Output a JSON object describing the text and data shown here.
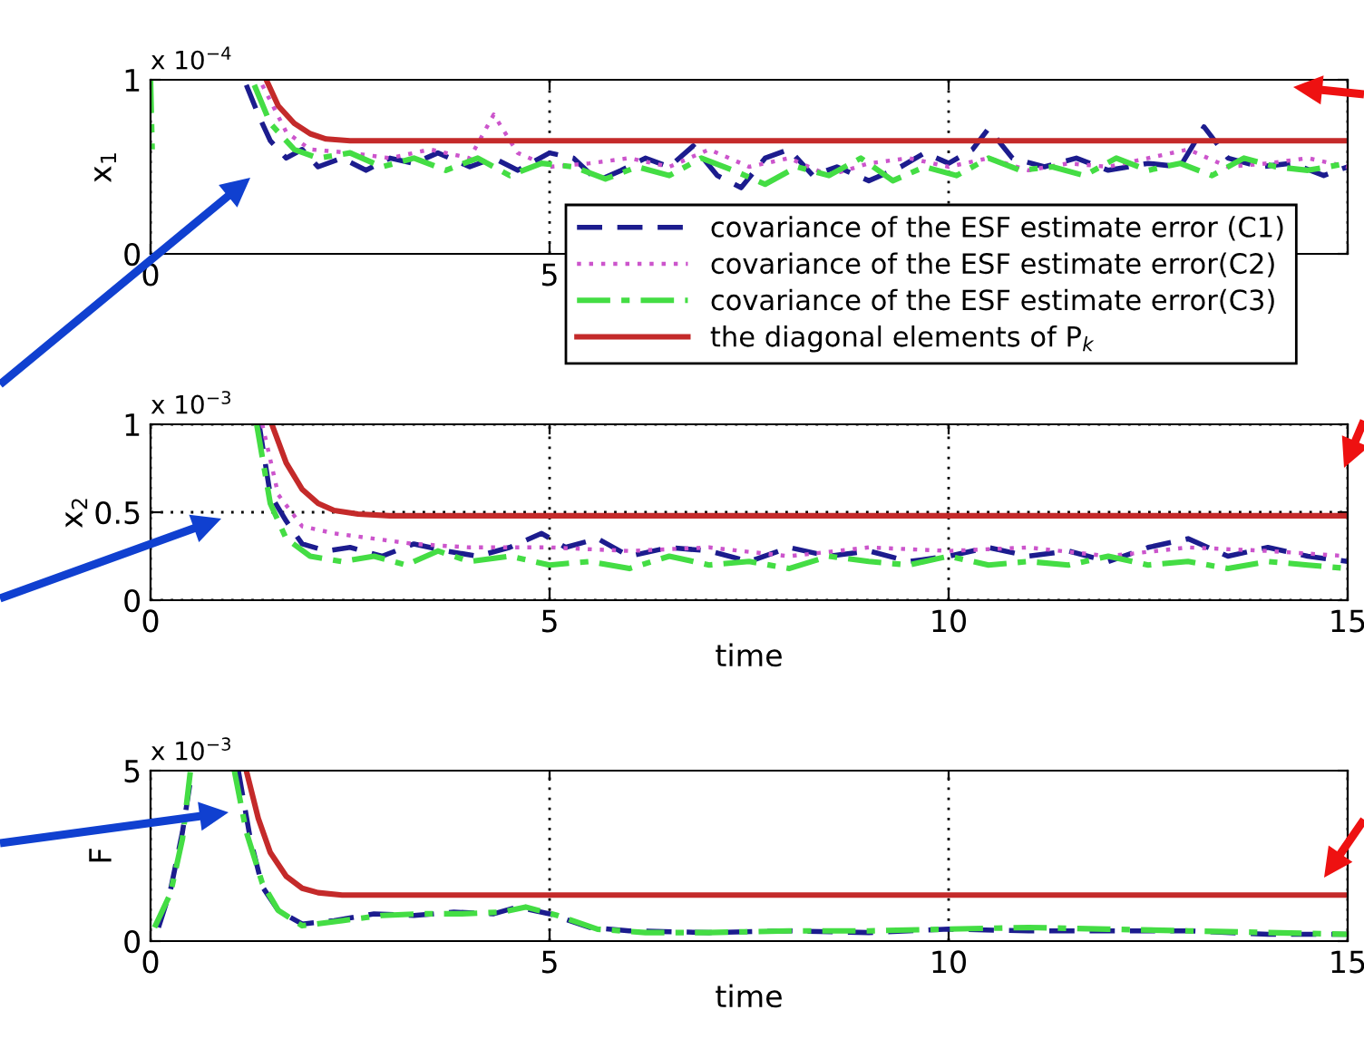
{
  "chart_data": [
    {
      "type": "line",
      "ylabel": "x$_{1}$",
      "annotations": [
        "x 10$^{−4}$"
      ],
      "xlim": [
        0,
        15
      ],
      "ylim": [
        0,
        1
      ],
      "xticks": [
        0,
        5,
        {
          "value": 10,
          "label": null
        },
        {
          "value": 15,
          "label": null
        }
      ],
      "yticks": [
        0,
        1
      ],
      "grid": "x",
      "legend": "bottom right",
      "series": [
        {
          "name": "covariance of the ESF estimate error (C1)",
          "color": "#1c1c8e",
          "line_style": "dashed",
          "x": [
            1.2,
            1.35,
            1.5,
            1.7,
            1.9,
            2.1,
            2.4,
            2.7,
            3.0,
            3.3,
            3.6,
            4.0,
            4.3,
            4.6,
            5.0,
            5.3,
            5.6,
            5.9,
            6.2,
            6.5,
            6.8,
            7.1,
            7.4,
            7.7,
            8.0,
            8.3,
            8.6,
            9.0,
            9.4,
            9.7,
            10.0,
            10.3,
            10.5,
            10.8,
            11.2,
            11.6,
            12.0,
            12.5,
            12.9,
            13.2,
            13.5,
            13.9,
            14.3,
            14.7,
            15
          ],
          "values": [
            0.97,
            0.8,
            0.65,
            0.55,
            0.6,
            0.5,
            0.55,
            0.48,
            0.55,
            0.52,
            0.58,
            0.5,
            0.55,
            0.48,
            0.58,
            0.55,
            0.42,
            0.48,
            0.55,
            0.5,
            0.62,
            0.45,
            0.38,
            0.55,
            0.6,
            0.45,
            0.5,
            0.42,
            0.5,
            0.58,
            0.52,
            0.6,
            0.72,
            0.55,
            0.5,
            0.55,
            0.48,
            0.52,
            0.5,
            0.73,
            0.55,
            0.5,
            0.52,
            0.45,
            0.5
          ]
        },
        {
          "name": "covariance of the ESF estimate error(C2)",
          "color": "#cc55cc",
          "line_style": "dotted",
          "x": [
            1.4,
            1.7,
            2.0,
            2.5,
            3.0,
            3.5,
            4.0,
            4.3,
            4.6,
            5.0,
            5.5,
            6.0,
            6.5,
            7.0,
            7.5,
            8.0,
            8.5,
            9.0,
            9.5,
            10.0,
            10.5,
            11.0,
            11.5,
            12.0,
            12.5,
            13.0,
            13.5,
            14.0,
            14.5,
            15
          ],
          "values": [
            0.97,
            0.7,
            0.6,
            0.58,
            0.55,
            0.6,
            0.55,
            0.8,
            0.58,
            0.5,
            0.52,
            0.55,
            0.5,
            0.6,
            0.5,
            0.55,
            0.45,
            0.52,
            0.55,
            0.5,
            0.55,
            0.48,
            0.52,
            0.5,
            0.55,
            0.6,
            0.5,
            0.52,
            0.55,
            0.5
          ]
        },
        {
          "name": "covariance of the ESF estimate error(C3)",
          "color": "#44dd44",
          "line_style": "dashdot",
          "x": [
            0,
            0.02,
            0.5,
            1.3,
            1.5,
            1.8,
            2.1,
            2.5,
            2.9,
            3.3,
            3.7,
            4.1,
            4.5,
            4.9,
            5.3,
            5.7,
            6.1,
            6.5,
            6.9,
            7.3,
            7.7,
            8.1,
            8.5,
            8.9,
            9.3,
            9.7,
            10.1,
            10.5,
            10.9,
            11.3,
            11.7,
            12.1,
            12.5,
            12.9,
            13.3,
            13.7,
            14.1,
            14.5,
            15
          ],
          "values": [
            1.0,
            0.6,
            null,
            0.97,
            0.75,
            0.6,
            0.55,
            0.58,
            0.5,
            0.55,
            0.48,
            0.55,
            0.45,
            0.52,
            0.5,
            0.43,
            0.5,
            0.45,
            0.55,
            0.48,
            0.4,
            0.5,
            0.45,
            0.55,
            0.42,
            0.5,
            0.45,
            0.55,
            0.48,
            0.5,
            0.45,
            0.55,
            0.48,
            0.52,
            0.45,
            0.55,
            0.5,
            0.48,
            0.52
          ]
        },
        {
          "name": "the diagonal elements of P$_{k}$",
          "color": "#c42a2a",
          "line_style": "solid",
          "x": [
            1.45,
            1.6,
            1.8,
            2.0,
            2.2,
            2.5,
            3,
            15
          ],
          "values": [
            1.0,
            0.85,
            0.75,
            0.69,
            0.66,
            0.65,
            0.65,
            0.65
          ]
        }
      ]
    },
    {
      "type": "line",
      "ylabel": "x$_{2}$",
      "xlabel": "time",
      "annotations": [
        "x 10$^{−3}$"
      ],
      "xlim": [
        0,
        15
      ],
      "ylim": [
        0,
        1
      ],
      "xticks": [
        0,
        5,
        10,
        15
      ],
      "yticks": [
        0,
        0.5,
        1
      ],
      "grid": true,
      "series": [
        {
          "color": "#1c1c8e",
          "line_style": "dashed",
          "x": [
            1.36,
            1.5,
            1.7,
            1.9,
            2.2,
            2.5,
            2.9,
            3.3,
            3.7,
            4.1,
            4.5,
            4.9,
            5.2,
            5.6,
            6,
            6.5,
            7,
            7.5,
            8,
            8.5,
            9,
            9.5,
            10,
            10.5,
            11,
            11.5,
            12,
            12.5,
            13,
            13.5,
            14,
            14.5,
            15
          ],
          "values": [
            1.0,
            0.6,
            0.45,
            0.32,
            0.28,
            0.3,
            0.25,
            0.32,
            0.28,
            0.25,
            0.3,
            0.38,
            0.3,
            0.35,
            0.25,
            0.3,
            0.28,
            0.22,
            0.3,
            0.25,
            0.28,
            0.22,
            0.25,
            0.3,
            0.25,
            0.28,
            0.22,
            0.3,
            0.35,
            0.25,
            0.3,
            0.25,
            0.22
          ]
        },
        {
          "color": "#cc55cc",
          "line_style": "dotted",
          "x": [
            1.4,
            1.6,
            1.9,
            2.3,
            2.8,
            3.3,
            4,
            5,
            6,
            7,
            8,
            9,
            10,
            11,
            12,
            13,
            14,
            15
          ],
          "values": [
            1.0,
            0.6,
            0.42,
            0.38,
            0.35,
            0.32,
            0.3,
            0.3,
            0.28,
            0.3,
            0.25,
            0.3,
            0.28,
            0.3,
            0.25,
            0.3,
            0.28,
            0.25
          ]
        },
        {
          "color": "#44dd44",
          "line_style": "dashdot",
          "x": [
            1.33,
            1.5,
            1.7,
            2,
            2.4,
            2.8,
            3.2,
            3.6,
            4,
            4.5,
            5,
            5.5,
            6,
            6.5,
            7,
            7.5,
            8,
            8.5,
            9,
            9.5,
            10,
            10.5,
            11,
            11.5,
            12,
            12.5,
            13,
            13.5,
            14,
            14.5,
            15
          ],
          "values": [
            1.0,
            0.55,
            0.35,
            0.25,
            0.22,
            0.25,
            0.2,
            0.28,
            0.22,
            0.25,
            0.2,
            0.22,
            0.18,
            0.25,
            0.2,
            0.22,
            0.18,
            0.25,
            0.22,
            0.2,
            0.25,
            0.2,
            0.22,
            0.2,
            0.25,
            0.2,
            0.22,
            0.18,
            0.22,
            0.2,
            0.18
          ]
        },
        {
          "color": "#c42a2a",
          "line_style": "solid",
          "x": [
            1.52,
            1.7,
            1.9,
            2.1,
            2.3,
            2.6,
            3,
            15
          ],
          "values": [
            1.0,
            0.78,
            0.63,
            0.55,
            0.51,
            0.49,
            0.48,
            0.48
          ]
        }
      ]
    },
    {
      "type": "line",
      "ylabel": "F",
      "xlabel": "time",
      "annotations": [
        "x 10$^{−3}$"
      ],
      "xlim": [
        0,
        15
      ],
      "ylim": [
        0,
        5
      ],
      "xticks": [
        0,
        5,
        10,
        15
      ],
      "yticks": [
        0,
        5
      ],
      "grid": "x",
      "series": [
        {
          "color": "#1c1c8e",
          "line_style": "dashed",
          "x": [
            0.1,
            0.25,
            0.4,
            0.52,
            0.8,
            1.1,
            1.25,
            1.4,
            1.6,
            1.9,
            2.3,
            2.8,
            3.3,
            3.8,
            4.3,
            4.6,
            5.0,
            5.5,
            6,
            7,
            8,
            9,
            10,
            11,
            12,
            13,
            14,
            15
          ],
          "values": [
            0.4,
            1.5,
            3.2,
            5.0,
            null,
            5.0,
            3.0,
            1.6,
            0.9,
            0.5,
            0.6,
            0.8,
            0.75,
            0.85,
            0.8,
            1.0,
            0.8,
            0.4,
            0.3,
            0.25,
            0.3,
            0.25,
            0.35,
            0.3,
            0.3,
            0.3,
            0.2,
            0.2
          ]
        },
        {
          "color": "#44dd44",
          "line_style": "dashdot",
          "x": [
            0.05,
            0.25,
            0.4,
            0.5,
            0.8,
            1.05,
            1.2,
            1.4,
            1.6,
            1.9,
            2.4,
            2.9,
            3.4,
            3.9,
            4.4,
            4.7,
            5.1,
            5.6,
            6.2,
            7,
            8,
            9,
            10,
            11,
            12,
            13,
            14,
            15
          ],
          "values": [
            0.4,
            1.4,
            3.0,
            5.0,
            null,
            5.0,
            3.2,
            1.7,
            0.9,
            0.45,
            0.6,
            0.75,
            0.8,
            0.8,
            0.85,
            1.0,
            0.75,
            0.35,
            0.25,
            0.25,
            0.3,
            0.3,
            0.35,
            0.4,
            0.35,
            0.3,
            0.25,
            0.2
          ]
        },
        {
          "color": "#c42a2a",
          "line_style": "solid",
          "x": [
            1.2,
            1.35,
            1.5,
            1.7,
            1.9,
            2.1,
            2.4,
            15
          ],
          "values": [
            5.0,
            3.6,
            2.6,
            1.9,
            1.55,
            1.42,
            1.35,
            1.35
          ]
        }
      ]
    }
  ]
}
